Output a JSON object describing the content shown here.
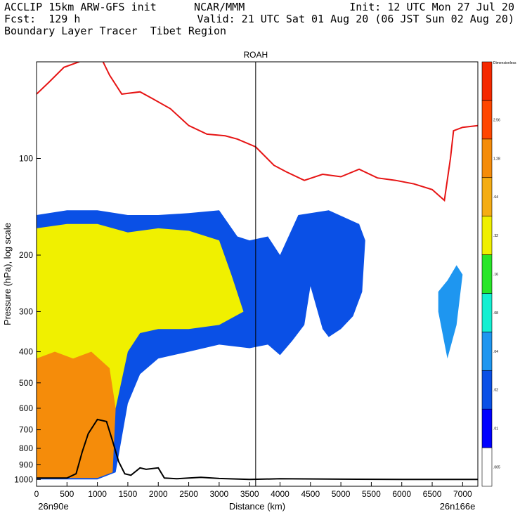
{
  "header": {
    "left_line1": "ACCLIP 15km ARW-GFS init",
    "left_line2": "Fcst:  129 h",
    "left_line3": "Boundary Layer Tracer  Tibet Region",
    "center_line1": "NCAR/MMM",
    "right_line1": "Init: 12 UTC Mon 27 Jul 20",
    "right_line2": "Valid: 21 UTC Sat 01 Aug 20 (06 JST Sun 02 Aug 20)"
  },
  "chart_data": {
    "type": "heatmap",
    "title": "",
    "xlabel": "Distance (km)",
    "ylabel": "Pressure (hPa), log scale",
    "y_scale": "log",
    "xlim": [
      0,
      7250
    ],
    "ylim": [
      1050,
      50
    ],
    "x_ticks": [
      "0",
      "500",
      "1000",
      "1500",
      "2000",
      "2500",
      "3000",
      "3500",
      "4000",
      "4500",
      "5000",
      "5500",
      "6000",
      "6500",
      "7000"
    ],
    "y_ticks": [
      "100",
      "200",
      "300",
      "400",
      "500",
      "600",
      "700",
      "800",
      "900",
      "1000"
    ],
    "x_ends": {
      "left": "26n90e",
      "right": "26n166e"
    },
    "vertical_marker": {
      "label": "ROAH",
      "x": 3600
    },
    "colorbar": {
      "top_label": "Dimensionless",
      "levels": [
        ".005",
        ".01",
        ".02",
        ".04",
        ".08",
        ".16",
        ".32",
        ".64",
        "1.28",
        "2.56"
      ],
      "colors": [
        "#ffffff",
        "#0000ff",
        "#0a50e6",
        "#1e96f0",
        "#14f0d2",
        "#28e628",
        "#f0f000",
        "#f5ad14",
        "#f58c0a",
        "#ff4600",
        "#f52800"
      ]
    },
    "tropopause_line": {
      "color": "#e61414",
      "x": [
        0,
        200,
        450,
        700,
        900,
        1000,
        1200,
        1400,
        1700,
        1900,
        2200,
        2500,
        2800,
        3100,
        3300,
        3600,
        3900,
        4100,
        4400,
        4700,
        5000,
        5300,
        5600,
        5900,
        6200,
        6500,
        6700,
        6800,
        6850,
        7000,
        7250
      ],
      "y": [
        63,
        58,
        52,
        50,
        47,
        46,
        55,
        63,
        62,
        65,
        70,
        79,
        84,
        85,
        87,
        92,
        105,
        110,
        117,
        112,
        114,
        108,
        115,
        117,
        120,
        125,
        135,
        100,
        82,
        80,
        79
      ]
    },
    "terrain_line": {
      "color": "#000000",
      "x": [
        0,
        500,
        650,
        750,
        850,
        1000,
        1150,
        1250,
        1350,
        1450,
        1550,
        1700,
        1800,
        2000,
        2100,
        2300,
        2500,
        2700,
        3000,
        3500,
        4000,
        5000,
        6000,
        7250
      ],
      "y": [
        990,
        990,
        960,
        820,
        720,
        650,
        660,
        760,
        880,
        960,
        970,
        920,
        930,
        920,
        990,
        995,
        990,
        985,
        993,
        1000,
        995,
        998,
        1000,
        1000
      ]
    },
    "tracer_regions": [
      {
        "name": "envelope >.01",
        "x": [
          0,
          500,
          1000,
          1500,
          2000,
          2500,
          3000,
          3300,
          3500,
          3800,
          4000,
          4300,
          4800,
          5300,
          5400,
          5350,
          5200,
          5000,
          4800,
          4700,
          4500,
          4400,
          4200,
          4000,
          3800,
          3500,
          3000,
          2500,
          2000,
          1700,
          1500,
          1300,
          1000,
          500,
          0
        ],
        "y": [
          150,
          145,
          145,
          150,
          150,
          148,
          145,
          175,
          180,
          175,
          200,
          150,
          145,
          160,
          180,
          260,
          310,
          340,
          360,
          340,
          250,
          330,
          370,
          410,
          380,
          390,
          380,
          400,
          420,
          470,
          580,
          950,
          1000,
          1000,
          1000
        ]
      },
      {
        "name": "core >.16",
        "x": [
          0,
          500,
          1000,
          1500,
          2000,
          2500,
          3000,
          3200,
          3400,
          3000,
          2500,
          2000,
          1700,
          1500,
          1300,
          1000,
          500,
          0
        ],
        "y": [
          165,
          160,
          160,
          170,
          165,
          168,
          180,
          230,
          300,
          330,
          340,
          340,
          350,
          400,
          600,
          900,
          950,
          950
        ]
      },
      {
        "name": "high >.64",
        "x": [
          0,
          300,
          600,
          900,
          1200,
          1300,
          1250,
          1000,
          500,
          0
        ],
        "y": [
          420,
          400,
          420,
          400,
          450,
          600,
          950,
          990,
          990,
          990
        ]
      },
      {
        "name": "small cell",
        "x": [
          6600,
          6750,
          6900,
          7000,
          6900,
          6750,
          6600
        ],
        "y": [
          260,
          240,
          215,
          230,
          330,
          420,
          300
        ]
      }
    ]
  }
}
